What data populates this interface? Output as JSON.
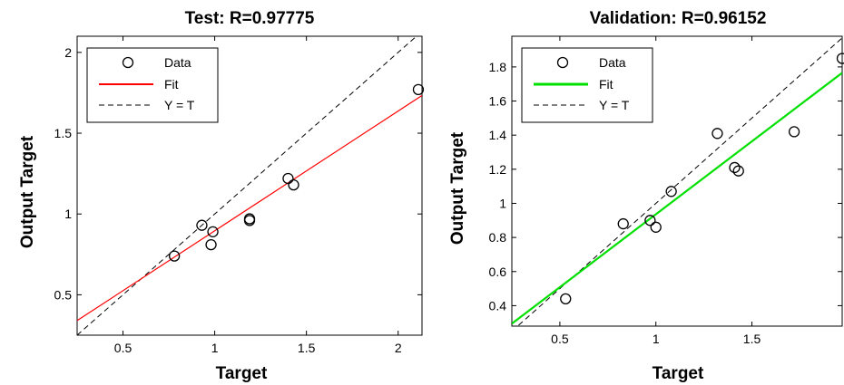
{
  "chart_data": [
    {
      "type": "scatter",
      "title": "Test: R=0.97775",
      "xlabel": "Target",
      "ylabel": "Output Target",
      "xlim": [
        0.25,
        2.13
      ],
      "ylim": [
        0.25,
        2.1
      ],
      "xticks": [
        0.5,
        1,
        1.5,
        2
      ],
      "xtick_labels": [
        "0.5",
        "1",
        "1.5",
        "2"
      ],
      "yticks": [
        0.5,
        1,
        1.5,
        2
      ],
      "ytick_labels": [
        "0.5",
        "1",
        "1.5",
        "2"
      ],
      "points": [
        [
          0.78,
          0.74
        ],
        [
          0.93,
          0.93
        ],
        [
          0.99,
          0.89
        ],
        [
          0.98,
          0.81
        ],
        [
          1.19,
          0.97
        ],
        [
          1.19,
          0.96
        ],
        [
          1.4,
          1.22
        ],
        [
          1.43,
          1.18
        ],
        [
          2.11,
          1.77
        ]
      ],
      "fit": {
        "slope": 0.741,
        "intercept": 0.155,
        "color": "#ff0000"
      },
      "identity_line": true,
      "legend": [
        "Data",
        "Fit",
        "Y = T"
      ],
      "legend_position": "top-left",
      "grid": false
    },
    {
      "type": "scatter",
      "title": "Validation: R=0.96152",
      "xlabel": "Target",
      "ylabel": "Output Target",
      "xlim": [
        0.25,
        1.97
      ],
      "ylim": [
        0.28,
        1.98
      ],
      "xticks": [
        0.5,
        1,
        1.5
      ],
      "xtick_labels": [
        "0.5",
        "1",
        "1.5"
      ],
      "yticks": [
        0.4,
        0.6,
        0.8,
        1,
        1.2,
        1.4,
        1.6,
        1.8
      ],
      "ytick_labels": [
        "0.4",
        "0.6",
        "0.8",
        "1",
        "1.2",
        "1.4",
        "1.6",
        "1.8"
      ],
      "points": [
        [
          0.53,
          0.44
        ],
        [
          0.83,
          0.88
        ],
        [
          0.97,
          0.9
        ],
        [
          1.0,
          0.86
        ],
        [
          1.08,
          1.07
        ],
        [
          1.32,
          1.41
        ],
        [
          1.41,
          1.21
        ],
        [
          1.43,
          1.19
        ],
        [
          1.72,
          1.42
        ],
        [
          1.97,
          1.85
        ]
      ],
      "fit": {
        "slope": 0.855,
        "intercept": 0.081,
        "color": "#00e000"
      },
      "identity_line": true,
      "legend": [
        "Data",
        "Fit",
        "Y = T"
      ],
      "legend_position": "top-left",
      "grid": false
    }
  ]
}
